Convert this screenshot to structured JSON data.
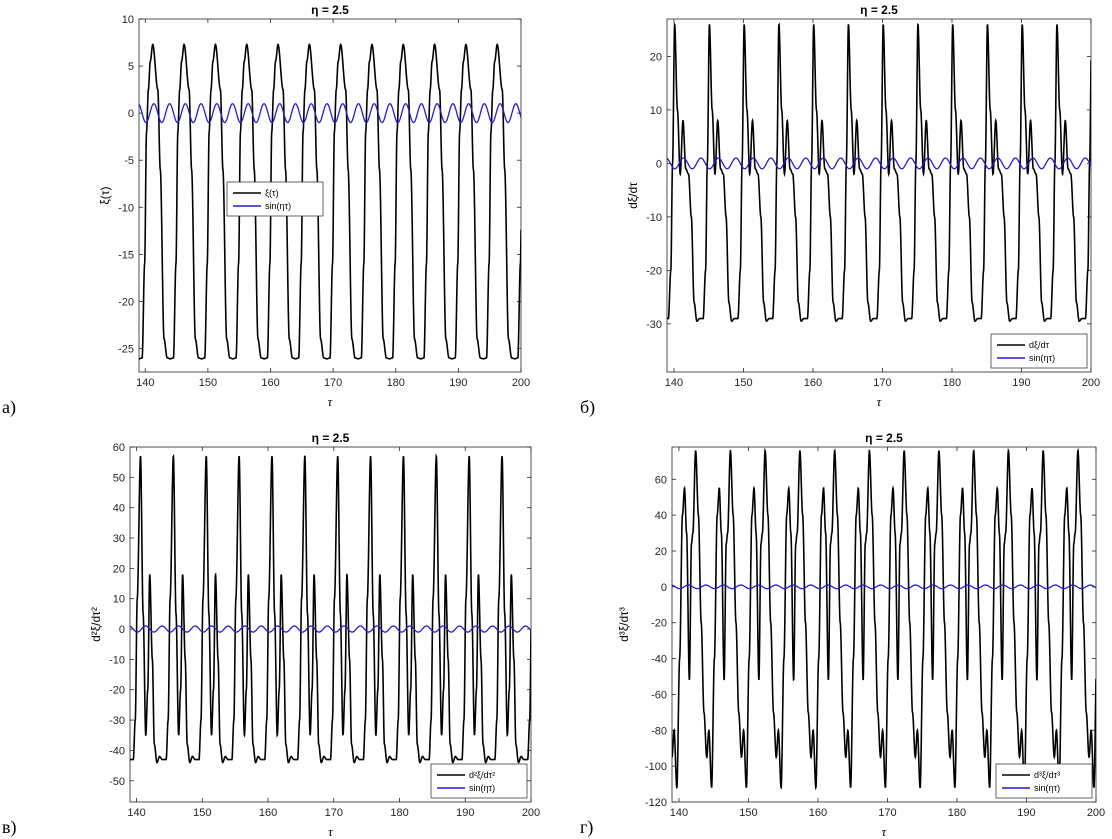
{
  "chart_data": [
    {
      "type": "line",
      "panel_label": "а)",
      "title": "η = 2.5",
      "xlabel": "τ",
      "ylabel": "ξ(τ)",
      "xlim": [
        139,
        200
      ],
      "ylim": [
        -27.5,
        10
      ],
      "xticks": [
        140,
        150,
        160,
        170,
        180,
        190,
        200
      ],
      "yticks": [
        10,
        5,
        0,
        -5,
        -10,
        -15,
        -20,
        -25
      ],
      "legend_position": "center-right",
      "legend": [
        "ξ(τ)",
        "sin(ητ)"
      ],
      "series": [
        {
          "name": "ξ(τ)",
          "color": "#000000",
          "period": 5.0,
          "phase": 139.5,
          "key_x": [
            0,
            0.08,
            0.14,
            0.2,
            0.26,
            0.34,
            0.5,
            0.58,
            0.7,
            0.8,
            0.9,
            1.0
          ],
          "key_y": [
            -26,
            -16,
            -2,
            2.5,
            5.5,
            7.3,
            2.5,
            -6,
            -24,
            -26,
            -26.1,
            -26
          ]
        },
        {
          "name": "sin(ητ)",
          "color": "#1f1fd0",
          "amp": 1,
          "omega": 2.5
        }
      ]
    },
    {
      "type": "line",
      "panel_label": "б)",
      "title": "η = 2.5",
      "xlabel": "τ",
      "ylabel": "dξ/dτ",
      "xlim": [
        139,
        200
      ],
      "ylim": [
        -39,
        27
      ],
      "xticks": [
        140,
        150,
        160,
        170,
        180,
        190,
        200
      ],
      "yticks": [
        20,
        10,
        0,
        -10,
        -20,
        -30
      ],
      "legend_position": "bottom-right",
      "legend": [
        "dξ/dτ",
        "sin(ητ)"
      ],
      "series": [
        {
          "name": "dξ/dτ",
          "color": "#000000",
          "period": 5.0,
          "phase": 139.2,
          "key_x": [
            0,
            0.07,
            0.12,
            0.18,
            0.26,
            0.34,
            0.42,
            0.5,
            0.58,
            0.66,
            0.74,
            0.82,
            0.9,
            1.0
          ],
          "key_y": [
            -29,
            -20,
            0,
            26,
            10,
            -2,
            8,
            -1,
            -2,
            -10,
            -26,
            -29.5,
            -29,
            -29
          ]
        },
        {
          "name": "sin(ητ)",
          "color": "#1f1fd0",
          "amp": 1,
          "omega": 2.5
        }
      ]
    },
    {
      "type": "line",
      "panel_label": "в)",
      "title": "η = 2.5",
      "xlabel": "τ",
      "ylabel": "d²ξ/dτ²",
      "xlim": [
        139,
        200
      ],
      "ylim": [
        -57,
        60
      ],
      "xticks": [
        140,
        150,
        160,
        170,
        180,
        190,
        200
      ],
      "yticks": [
        60,
        50,
        40,
        30,
        20,
        10,
        0,
        -10,
        -20,
        -30,
        -40,
        -50
      ],
      "legend_position": "bottom-right",
      "legend": [
        "d²ξ/dτ²",
        "sin(ητ)"
      ],
      "series": [
        {
          "name": "d²ξ/dτ²",
          "color": "#000000",
          "period": 5.0,
          "phase": 139.5,
          "key_x": [
            0,
            0.06,
            0.12,
            0.22,
            0.3,
            0.38,
            0.44,
            0.5,
            0.58,
            0.64,
            0.72,
            0.8,
            0.88,
            1.0
          ],
          "key_y": [
            -43,
            -30,
            10,
            57,
            5,
            -35,
            -20,
            18,
            -10,
            -38,
            -44,
            -42,
            -43,
            -43
          ]
        },
        {
          "name": "sin(ητ)",
          "color": "#1f1fd0",
          "amp": 1,
          "omega": 2.5
        }
      ]
    },
    {
      "type": "line",
      "panel_label": "г)",
      "title": "η = 2.5",
      "xlabel": "τ",
      "ylabel": "d³ξ/dτ³",
      "xlim": [
        139,
        200
      ],
      "ylim": [
        -120,
        78
      ],
      "xticks": [
        140,
        150,
        160,
        170,
        180,
        190,
        200
      ],
      "yticks": [
        60,
        40,
        20,
        0,
        -20,
        -40,
        -60,
        -80,
        -100,
        -120
      ],
      "legend_position": "bottom-right",
      "legend": [
        "d³ξ/dτ³",
        "sin(ητ)"
      ],
      "series": [
        {
          "name": "d³ξ/dτ³",
          "color": "#000000",
          "period": 5.0,
          "phase": 139.3,
          "key_x": [
            0,
            0.08,
            0.16,
            0.24,
            0.3,
            0.36,
            0.44,
            0.5,
            0.54,
            0.62,
            0.7,
            0.78,
            0.86,
            0.94,
            1.0
          ],
          "key_y": [
            -80,
            -112,
            -40,
            40,
            55,
            30,
            -52,
            24,
            30,
            76,
            40,
            -20,
            -70,
            -95,
            -80
          ]
        },
        {
          "name": "sin(ητ)",
          "color": "#1f1fd0",
          "amp": 1,
          "omega": 2.5
        }
      ]
    }
  ]
}
